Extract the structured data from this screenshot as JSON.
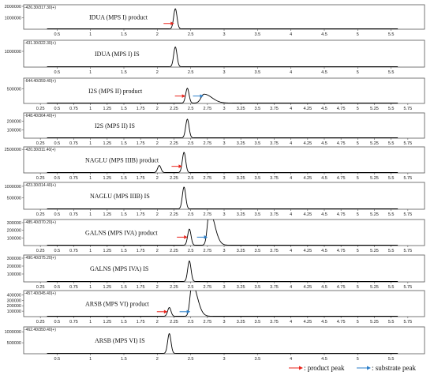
{
  "chart_data": [
    {
      "type": "line",
      "title": "IDUA (MPS I) product",
      "mz_label": "-426.30/317.30(+)",
      "xlim": [
        0,
        6
      ],
      "ylim": [
        0,
        2000000
      ],
      "yticks": [
        1000000,
        2000000
      ],
      "ytick_labels": [
        "1000000",
        "2000000"
      ],
      "xticks": [
        0.5,
        1,
        1.5,
        2,
        2.5,
        3,
        3.5,
        4,
        4.5,
        5,
        5.5
      ],
      "xtick_labels": [
        "0.5",
        "1",
        "1.5",
        "2",
        "2.5",
        "3",
        "3.5",
        "4",
        "4.5",
        "5",
        "5.5"
      ],
      "peaks": [
        {
          "x": 2.27,
          "y": 1750000,
          "w": 0.025
        }
      ],
      "markers": [
        {
          "color": "red",
          "x": 2.2,
          "y": 500000
        }
      ]
    },
    {
      "type": "line",
      "title": "IDUA (MPS I) IS",
      "mz_label": "-431.30/322.30(+)",
      "xlim": [
        0,
        6
      ],
      "ylim": [
        0,
        1600000
      ],
      "yticks": [
        1000000
      ],
      "ytick_labels": [
        "1000000"
      ],
      "xticks": [
        0.5,
        1,
        1.5,
        2,
        2.5,
        3,
        3.5,
        4,
        4.5,
        5,
        5.5
      ],
      "xtick_labels": [
        "0.5",
        "1",
        "1.5",
        "2",
        "2.5",
        "3",
        "3.5",
        "4",
        "4.5",
        "5",
        "5.5"
      ],
      "peaks": [
        {
          "x": 2.27,
          "y": 1250000,
          "w": 0.025
        }
      ],
      "markers": []
    },
    {
      "type": "line",
      "title": "I2S (MPS II) product",
      "mz_label": "-644.40/359.40(+)",
      "xlim": [
        0,
        6
      ],
      "ylim": [
        0,
        800000
      ],
      "yticks": [
        500000
      ],
      "ytick_labels": [
        "500000"
      ],
      "xticks": [
        0.25,
        0.5,
        0.75,
        1,
        1.25,
        1.5,
        1.75,
        2,
        2.25,
        2.5,
        2.75,
        3,
        3.25,
        3.5,
        3.75,
        4,
        4.25,
        4.5,
        4.75,
        5,
        5.25,
        5.5,
        5.75
      ],
      "xtick_labels": [
        "0.25",
        "0.5",
        "0.75",
        "1",
        "1.25",
        "1.5",
        "1.75",
        "2",
        "2.25",
        "2.5",
        "2.75",
        "3",
        "3.25",
        "3.5",
        "3.75",
        "4",
        "4.25",
        "4.5",
        "4.75",
        "5",
        "5.25",
        "5.5",
        "5.75"
      ],
      "peaks": [
        {
          "x": 2.45,
          "y": 500000,
          "w": 0.025
        },
        {
          "x": 2.7,
          "y": 300000,
          "w": 0.045,
          "tail": true
        }
      ],
      "markers": [
        {
          "color": "red",
          "x": 2.37,
          "y": 250000
        },
        {
          "color": "blue",
          "x": 2.64,
          "y": 250000
        }
      ]
    },
    {
      "type": "line",
      "title": "I2S (MPS II) IS",
      "mz_label": "-648.40/364.40(+)",
      "xlim": [
        0,
        6
      ],
      "ylim": [
        0,
        280000
      ],
      "yticks": [
        100000,
        200000
      ],
      "ytick_labels": [
        "100000",
        "200000"
      ],
      "xticks": [
        0.25,
        0.5,
        0.75,
        1,
        1.25,
        1.5,
        1.75,
        2,
        2.25,
        2.5,
        2.75,
        3,
        3.25,
        3.5,
        3.75,
        4,
        4.25,
        4.5,
        4.75,
        5,
        5.25,
        5.5,
        5.75
      ],
      "xtick_labels": [
        "0.25",
        "0.5",
        "0.75",
        "1",
        "1.25",
        "1.5",
        "1.75",
        "2",
        "2.25",
        "2.5",
        "2.75",
        "3",
        "3.25",
        "3.5",
        "3.75",
        "4",
        "4.25",
        "4.5",
        "4.75",
        "5",
        "5.25",
        "5.5",
        "5.75"
      ],
      "peaks": [
        {
          "x": 2.45,
          "y": 220000,
          "w": 0.025
        }
      ],
      "markers": []
    },
    {
      "type": "line",
      "title": "NAGLU (MPS IIIB) product",
      "mz_label": "-420.30/311.40(+)",
      "xlim": [
        0,
        6
      ],
      "ylim": [
        0,
        2600000
      ],
      "yticks": [
        2500000
      ],
      "ytick_labels": [
        "2500000"
      ],
      "xticks": [
        0.25,
        0.5,
        0.75,
        1,
        1.25,
        1.5,
        1.75,
        2,
        2.25,
        2.5,
        2.75,
        3,
        3.25,
        3.5,
        3.75,
        4,
        4.25,
        4.5,
        4.75,
        5,
        5.25,
        5.5,
        5.75
      ],
      "xtick_labels": [
        "0.25",
        "0.5",
        "0.75",
        "1",
        "1.25",
        "1.5",
        "1.75",
        "2",
        "2.25",
        "2.5",
        "2.75",
        "3",
        "3.25",
        "3.5",
        "3.75",
        "4",
        "4.25",
        "4.5",
        "4.75",
        "5",
        "5.25",
        "5.5",
        "5.75"
      ],
      "peaks": [
        {
          "x": 2.03,
          "y": 750000,
          "w": 0.025
        },
        {
          "x": 2.4,
          "y": 2150000,
          "w": 0.025
        }
      ],
      "markers": [
        {
          "color": "red",
          "x": 2.32,
          "y": 700000
        }
      ]
    },
    {
      "type": "line",
      "title": "NAGLU (MPS IIIB) IS",
      "mz_label": "-423.30/314.40(+)",
      "xlim": [
        0,
        6
      ],
      "ylim": [
        0,
        1100000
      ],
      "yticks": [
        500000,
        1000000
      ],
      "ytick_labels": [
        "500000",
        "1000000"
      ],
      "xticks": [
        0.25,
        0.5,
        0.75,
        1,
        1.25,
        1.5,
        1.75,
        2,
        2.25,
        2.5,
        2.75,
        3,
        3.25,
        3.5,
        3.75,
        4,
        4.25,
        4.5,
        4.75,
        5,
        5.25,
        5.5,
        5.75
      ],
      "xtick_labels": [
        "0.25",
        "0.5",
        "0.75",
        "1",
        "1.25",
        "1.5",
        "1.75",
        "2",
        "2.25",
        "2.5",
        "2.75",
        "3",
        "3.25",
        "3.5",
        "3.75",
        "4",
        "4.25",
        "4.5",
        "4.75",
        "5",
        "5.25",
        "5.5",
        "5.75"
      ],
      "peaks": [
        {
          "x": 2.4,
          "y": 950000,
          "w": 0.025
        }
      ],
      "markers": []
    },
    {
      "type": "line",
      "title": "GALNS (MPS IVA) product",
      "mz_label": "-485.40/370.20(+)",
      "xlim": [
        0,
        6
      ],
      "ylim": [
        0,
        320000
      ],
      "yticks": [
        100000,
        200000,
        300000
      ],
      "ytick_labels": [
        "100000",
        "200000",
        "300000"
      ],
      "xticks": [
        0.25,
        0.5,
        0.75,
        1,
        1.25,
        1.5,
        1.75,
        2,
        2.25,
        2.5,
        2.75,
        3,
        3.25,
        3.5,
        3.75,
        4,
        4.25,
        4.5,
        4.75,
        5,
        5.25,
        5.5,
        5.75
      ],
      "xtick_labels": [
        "0.25",
        "0.5",
        "0.75",
        "1",
        "1.25",
        "1.5",
        "1.75",
        "2",
        "2.25",
        "2.5",
        "2.75",
        "3",
        "3.25",
        "3.5",
        "3.75",
        "4",
        "4.25",
        "4.5",
        "4.75",
        "5",
        "5.25",
        "5.5",
        "5.75"
      ],
      "peaks": [
        {
          "x": 2.48,
          "y": 210000,
          "w": 0.025
        },
        {
          "x": 2.78,
          "y": 450000,
          "w": 0.03,
          "tail": true
        }
      ],
      "markers": [
        {
          "color": "red",
          "x": 2.4,
          "y": 110000
        },
        {
          "color": "blue",
          "x": 2.7,
          "y": 110000
        }
      ]
    },
    {
      "type": "line",
      "title": "GALNS (MPS IVA) IS",
      "mz_label": "-490.40/375.20(+)",
      "xlim": [
        0,
        6
      ],
      "ylim": [
        0,
        320000
      ],
      "yticks": [
        100000,
        200000,
        300000
      ],
      "ytick_labels": [
        "100000",
        "200000",
        "300000"
      ],
      "xticks": [
        0.25,
        0.5,
        0.75,
        1,
        1.25,
        1.5,
        1.75,
        2,
        2.25,
        2.5,
        2.75,
        3,
        3.25,
        3.5,
        3.75,
        4,
        4.25,
        4.5,
        4.75,
        5,
        5.25,
        5.5,
        5.75
      ],
      "xtick_labels": [
        "0.25",
        "0.5",
        "0.75",
        "1",
        "1.25",
        "1.5",
        "1.75",
        "2",
        "2.25",
        "2.5",
        "2.75",
        "3",
        "3.25",
        "3.5",
        "3.75",
        "4",
        "4.25",
        "4.5",
        "4.75",
        "5",
        "5.25",
        "5.5",
        "5.75"
      ],
      "peaks": [
        {
          "x": 2.48,
          "y": 260000,
          "w": 0.025
        }
      ],
      "markers": []
    },
    {
      "type": "line",
      "title": "ARSB (MPS VI) product",
      "mz_label": "-457.40/345.40(+)",
      "xlim": [
        0,
        6
      ],
      "ylim": [
        0,
        450000
      ],
      "yticks": [
        100000,
        200000,
        300000,
        400000
      ],
      "ytick_labels": [
        "100000",
        "200000",
        "300000",
        "400000"
      ],
      "xticks": [
        0.25,
        0.5,
        0.75,
        1,
        1.25,
        1.5,
        1.75,
        2,
        2.25,
        2.5,
        2.75,
        3,
        3.25,
        3.5,
        3.75,
        4,
        4.25,
        4.5,
        4.75,
        5,
        5.25,
        5.5,
        5.75
      ],
      "xtick_labels": [
        "0.25",
        "0.5",
        "0.75",
        "1",
        "1.25",
        "1.5",
        "1.75",
        "2",
        "2.25",
        "2.5",
        "2.75",
        "3",
        "3.25",
        "3.5",
        "3.75",
        "4",
        "4.25",
        "4.5",
        "4.75",
        "5",
        "5.25",
        "5.5",
        "5.75"
      ],
      "peaks": [
        {
          "x": 2.18,
          "y": 160000,
          "w": 0.025
        },
        {
          "x": 2.52,
          "y": 600000,
          "w": 0.03,
          "tail": true
        }
      ],
      "markers": [
        {
          "color": "red",
          "x": 2.1,
          "y": 90000
        },
        {
          "color": "blue",
          "x": 2.44,
          "y": 90000
        }
      ]
    },
    {
      "type": "line",
      "title": "ARSB (MPS VI) IS",
      "mz_label": "-462.40/350.40(+)",
      "xlim": [
        0,
        6
      ],
      "ylim": [
        0,
        1150000
      ],
      "yticks": [
        500000,
        1000000
      ],
      "ytick_labels": [
        "500000",
        "1000000"
      ],
      "xticks": [
        0.5,
        1,
        1.5,
        2,
        2.5,
        3,
        3.5,
        4,
        4.5,
        5,
        5.5
      ],
      "xtick_labels": [
        "0.5",
        "1",
        "1.5",
        "2",
        "2.5",
        "3",
        "3.5",
        "4",
        "4.5",
        "5",
        "5.5"
      ],
      "peaks": [
        {
          "x": 2.18,
          "y": 900000,
          "w": 0.025
        }
      ],
      "markers": []
    }
  ],
  "legend": {
    "product_label": ": product peak",
    "substrate_label": ": substrate peak",
    "product_color": "#e8241c",
    "substrate_color": "#2c7fc9"
  }
}
